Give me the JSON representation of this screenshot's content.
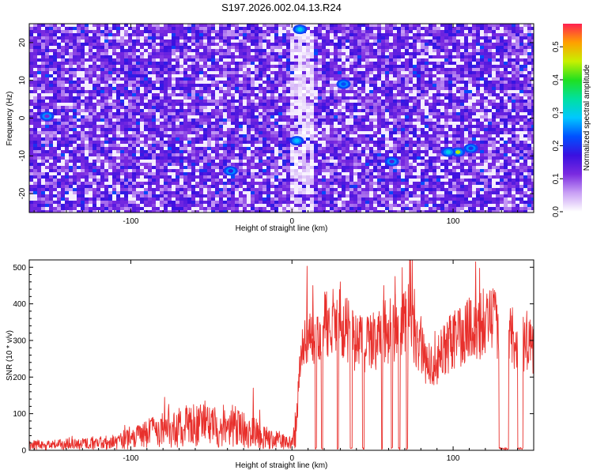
{
  "title": "S197.2026.002.04.13.R24",
  "colors": {
    "snr_line": "#e8302c",
    "frame": "#000000",
    "colormap": [
      "#ffffff",
      "#c9a0f5",
      "#7a2ae0",
      "#3a10e0",
      "#0050ff",
      "#00c8ff",
      "#00e0a0",
      "#20e020",
      "#c8f000",
      "#ffa000",
      "#ff2050"
    ]
  },
  "chart_data": [
    {
      "type": "heatmap",
      "title": "S197.2026.002.04.13.R24",
      "xlabel": "Height of straight line (km)",
      "ylabel": "Frequency (Hz)",
      "xlim": [
        -163,
        150
      ],
      "ylim": [
        -25,
        25
      ],
      "x_ticks": [
        -100,
        0,
        100
      ],
      "x_tick_labels": [
        "-100",
        "0",
        "100"
      ],
      "y_ticks": [
        -20,
        -10,
        0,
        10,
        20
      ],
      "y_tick_labels": [
        "-20",
        "-10",
        "0",
        "10",
        "20"
      ],
      "colorbar": {
        "label": "Normalized spectral amplitude",
        "range": [
          0,
          0.57
        ],
        "ticks": [
          0.0,
          0.1,
          0.2,
          0.3,
          0.4,
          0.5
        ],
        "tick_labels": [
          "0.0",
          "0.1",
          "0.2",
          "0.3",
          "0.4",
          "0.5"
        ]
      },
      "hot_spots": [
        {
          "x": 5,
          "y": 23.5,
          "value": 0.3
        },
        {
          "x": 3,
          "y": -6,
          "value": 0.28
        },
        {
          "x": -38,
          "y": -14,
          "value": 0.18
        },
        {
          "x": 32,
          "y": 9,
          "value": 0.22
        },
        {
          "x": 103,
          "y": -9,
          "value": 0.45
        },
        {
          "x": 97,
          "y": -9,
          "value": 0.3
        },
        {
          "x": 111,
          "y": -8,
          "value": 0.2
        },
        {
          "x": -152,
          "y": 0.5,
          "value": 0.12
        },
        {
          "x": 62,
          "y": -11.5,
          "value": 0.15
        }
      ]
    },
    {
      "type": "line",
      "xlabel": "Height of straight line (km)",
      "ylabel": "SNR (10 * v/v)",
      "xlim": [
        -163,
        150
      ],
      "ylim": [
        0,
        520
      ],
      "x_ticks": [
        -100,
        0,
        100
      ],
      "x_tick_labels": [
        "-100",
        "0",
        "100"
      ],
      "y_ticks": [
        0,
        100,
        200,
        300,
        400,
        500
      ],
      "y_tick_labels": [
        "0",
        "100",
        "200",
        "300",
        "400",
        "500"
      ],
      "envelope": {
        "x": [
          -163,
          -150,
          -130,
          -110,
          -95,
          -80,
          -65,
          -50,
          -35,
          -25,
          -15,
          -5,
          0,
          3,
          5,
          10,
          20,
          30,
          40,
          50,
          60,
          68,
          72,
          78,
          85,
          90,
          100,
          110,
          120,
          130,
          135,
          140,
          145,
          150
        ],
        "y": [
          15,
          15,
          18,
          25,
          40,
          55,
          65,
          70,
          65,
          50,
          35,
          25,
          18,
          80,
          250,
          300,
          340,
          350,
          290,
          300,
          330,
          340,
          360,
          290,
          230,
          250,
          300,
          330,
          350,
          340,
          330,
          270,
          300,
          280
        ]
      },
      "gaps": [
        {
          "x0": 14.3,
          "x1": 15.3
        },
        {
          "x0": 18.3,
          "x1": 19.0
        },
        {
          "x0": 28.0,
          "x1": 28.9
        },
        {
          "x0": 36.0,
          "x1": 37.5
        },
        {
          "x0": 43.8,
          "x1": 44.8
        },
        {
          "x0": 55.5,
          "x1": 56.3
        },
        {
          "x0": 61.5,
          "x1": 62.4
        },
        {
          "x0": 66.0,
          "x1": 67.2
        },
        {
          "x0": 71.0,
          "x1": 71.8
        },
        {
          "x0": 128.5,
          "x1": 134.5
        },
        {
          "x0": 140.0,
          "x1": 143.5
        }
      ],
      "spikes": [
        {
          "x": -79,
          "y": 145
        },
        {
          "x": -54,
          "y": 135
        },
        {
          "x": -24,
          "y": 170
        },
        {
          "x": -20,
          "y": 110
        },
        {
          "x": 13,
          "y": 450
        },
        {
          "x": 30,
          "y": 460
        },
        {
          "x": 57,
          "y": 450
        },
        {
          "x": 64,
          "y": 475
        },
        {
          "x": 76,
          "y": 440
        },
        {
          "x": 114,
          "y": 515
        }
      ]
    }
  ]
}
